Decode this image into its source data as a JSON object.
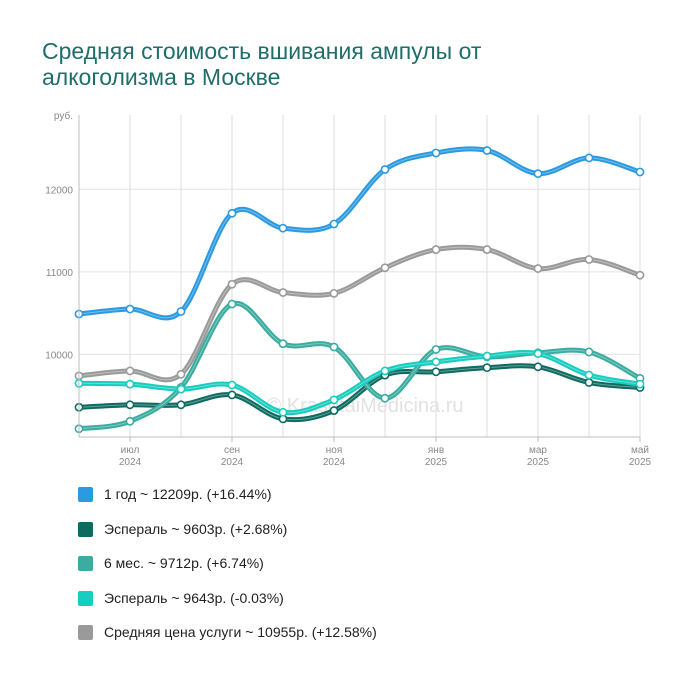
{
  "title_lines": [
    "Средняя стоимость вшивания ампулы от",
    "алкоголизма в Москве"
  ],
  "watermark": "© KrasotaiMedicina.ru",
  "chart_data": {
    "type": "line",
    "y_unit_label": "руб.",
    "ylim": [
      9000,
      12900
    ],
    "y_ticks": [
      10000,
      11000,
      12000
    ],
    "x_tick_labels": [
      [
        "июл",
        "2024"
      ],
      [
        "сен",
        "2024"
      ],
      [
        "ноя",
        "2024"
      ],
      [
        "янв",
        "2025"
      ],
      [
        "мар",
        "2025"
      ],
      [
        "май",
        "2025"
      ]
    ],
    "x_tick_positions": [
      1,
      3,
      5,
      7,
      9,
      11
    ],
    "x_range": [
      0,
      11
    ],
    "x": [
      0,
      1,
      2,
      3,
      4,
      5,
      6,
      7,
      8,
      9,
      10,
      11
    ],
    "series": [
      {
        "name": "1 год",
        "legend": "1 год ~ 12209р. (+16.44%)",
        "color": "#2b9ae0",
        "values": [
          10490,
          10550,
          10520,
          11710,
          11530,
          11580,
          12240,
          12440,
          12470,
          12190,
          12380,
          12210
        ]
      },
      {
        "name": "Эсперaль",
        "legend": "Эсперaль ~ 9603р. (+2.68%)",
        "color": "#0f6b60",
        "values": [
          9360,
          9390,
          9390,
          9510,
          9220,
          9320,
          9750,
          9790,
          9840,
          9850,
          9660,
          9600
        ]
      },
      {
        "name": "6 мес.",
        "legend": "6 мес. ~ 9712р. (+6.74%)",
        "color": "#3aaca0",
        "values": [
          9100,
          9190,
          9600,
          10610,
          10130,
          10090,
          9470,
          10060,
          9970,
          10020,
          10030,
          9710
        ]
      },
      {
        "name": "Эсперaль",
        "legend": "Эсперaль ~ 9643р. (-0.03%)",
        "color": "#17cdbf",
        "values": [
          9650,
          9640,
          9580,
          9630,
          9300,
          9450,
          9800,
          9910,
          9980,
          10010,
          9750,
          9640
        ]
      },
      {
        "name": "Средняя цена услуги",
        "legend": "Средняя цена услуги ~ 10955р. (+12.58%)",
        "color": "#9a9a9a",
        "values": [
          9740,
          9800,
          9760,
          10850,
          10750,
          10740,
          11050,
          11270,
          11270,
          11040,
          11150,
          10960
        ]
      }
    ],
    "grid": true,
    "legend_position": "bottom"
  }
}
